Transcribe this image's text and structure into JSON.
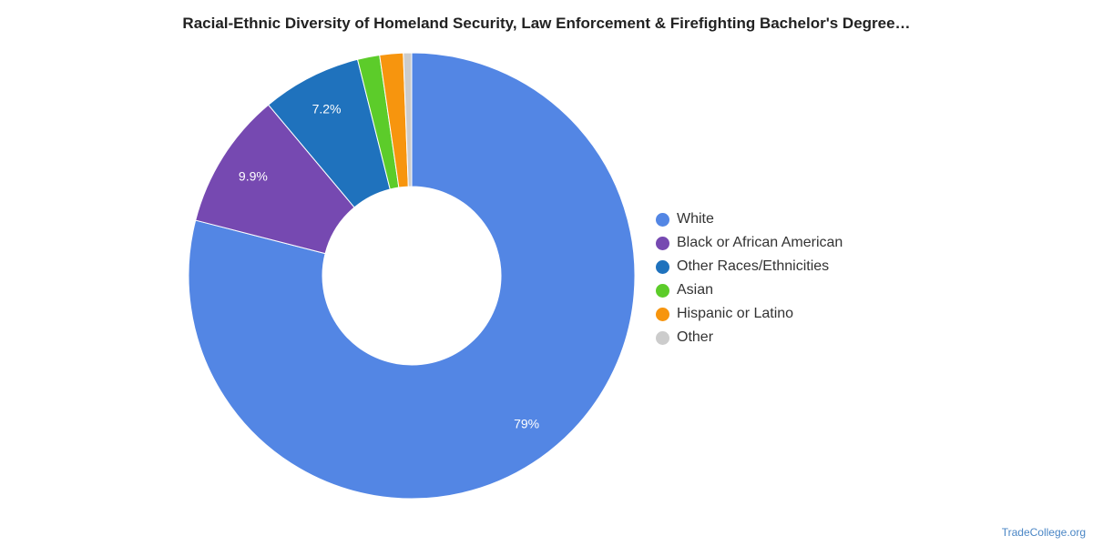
{
  "chart_data": {
    "type": "pie",
    "style": "donut",
    "title": "Racial-Ethnic Diversity of Homeland Security, Law Enforcement & Firefighting Bachelor's Degree…",
    "series": [
      {
        "name": "White",
        "value": 79,
        "label": "79%",
        "color": "#5386e4"
      },
      {
        "name": "Black or African American",
        "value": 9.9,
        "label": "9.9%",
        "color": "#7649b1"
      },
      {
        "name": "Other Races/Ethnicities",
        "value": 7.2,
        "label": "7.2%",
        "color": "#1f72bd"
      },
      {
        "name": "Asian",
        "value": 1.6,
        "label": "",
        "color": "#5ccc2a"
      },
      {
        "name": "Hispanic or Latino",
        "value": 1.7,
        "label": "",
        "color": "#f7950e"
      },
      {
        "name": "Other",
        "value": 0.6,
        "label": "",
        "color": "#cccccc"
      }
    ],
    "legend_position": "right"
  },
  "source": "TradeCollege.org"
}
